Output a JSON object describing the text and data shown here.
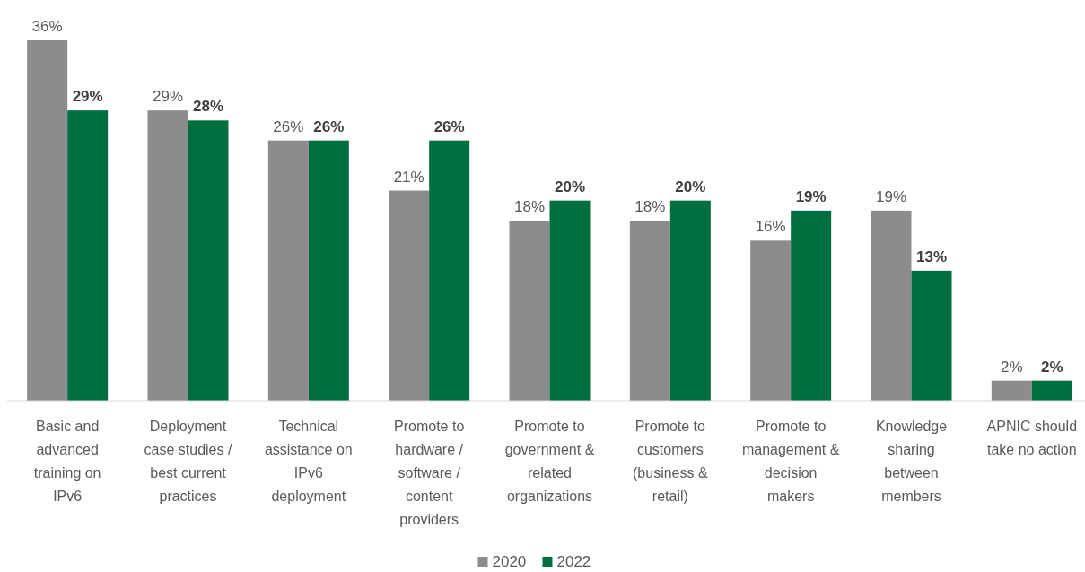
{
  "chart_data": {
    "type": "bar",
    "categories": [
      "Basic and advanced training on IPv6",
      "Deployment case studies / best current practices",
      "Technical assistance on IPv6 deployment",
      "Promote to hardware / software / content providers",
      "Promote to government & related organizations",
      "Promote to customers (business & retail)",
      "Promote to management & decision makers",
      "Knowledge sharing between members",
      "APNIC should take no action"
    ],
    "series": [
      {
        "name": "2020",
        "color": "#8c8c8c",
        "values": [
          36,
          29,
          26,
          21,
          18,
          18,
          16,
          19,
          2
        ],
        "value_labels": [
          "36%",
          "29%",
          "26%",
          "21%",
          "18%",
          "18%",
          "16%",
          "19%",
          "2%"
        ]
      },
      {
        "name": "2022",
        "color": "#006e3f",
        "values": [
          29,
          28,
          26,
          26,
          20,
          20,
          19,
          13,
          2
        ],
        "value_labels": [
          "29%",
          "28%",
          "26%",
          "26%",
          "20%",
          "20%",
          "19%",
          "13%",
          "2%"
        ]
      }
    ],
    "legend": "bottom"
  }
}
